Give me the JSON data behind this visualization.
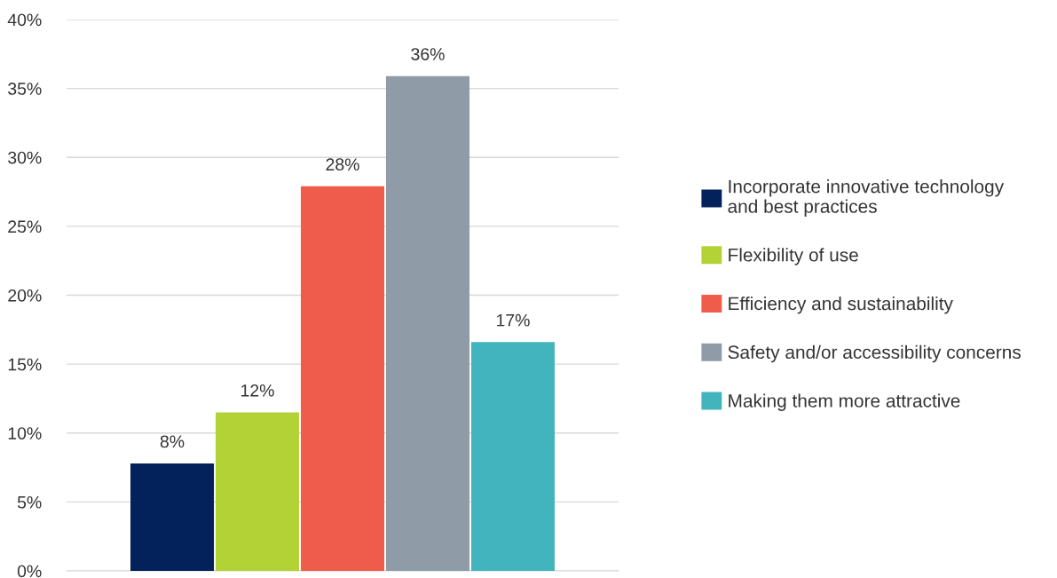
{
  "chart_data": {
    "type": "bar",
    "categories": [
      null
    ],
    "series": [
      {
        "name": "Incorporate innovative technology\nand best practices",
        "color": "#03215b",
        "values": [
          7.8
        ],
        "value_labels": [
          "8%"
        ]
      },
      {
        "name": "Flexibility of use",
        "color": "#b2d235",
        "values": [
          11.5
        ],
        "value_labels": [
          "12%"
        ]
      },
      {
        "name": "Efficiency and sustainability",
        "color": "#f05c4b",
        "values": [
          27.9
        ],
        "value_labels": [
          "28%"
        ]
      },
      {
        "name": "Safety and/or accessibility concerns",
        "color": "#8f9ca8",
        "values": [
          35.9
        ],
        "value_labels": [
          "36%"
        ]
      },
      {
        "name": "Making them more attractive",
        "color": "#42b4bd",
        "values": [
          16.6
        ],
        "value_labels": [
          "17%"
        ]
      }
    ],
    "ylim": [
      0,
      40
    ],
    "yticks": [
      {
        "value": 0,
        "label": "0%"
      },
      {
        "value": 5,
        "label": "5%"
      },
      {
        "value": 10,
        "label": "10%"
      },
      {
        "value": 15,
        "label": "15%"
      },
      {
        "value": 20,
        "label": "20%"
      },
      {
        "value": 25,
        "label": "25%"
      },
      {
        "value": 30,
        "label": "30%"
      },
      {
        "value": 35,
        "label": "35%"
      },
      {
        "value": 40,
        "label": "40%"
      }
    ],
    "grid": "y",
    "legend": "right"
  }
}
